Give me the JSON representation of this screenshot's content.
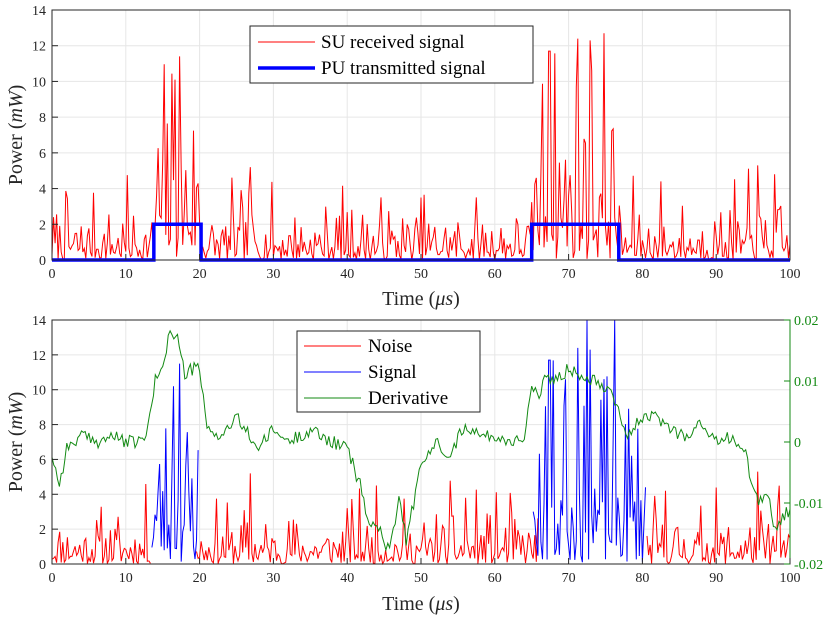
{
  "chart_data": [
    {
      "type": "line",
      "xlabel": "Time",
      "xunit": "μs",
      "ylabel": "Power",
      "yunit": "mW",
      "xlim": [
        0,
        100
      ],
      "ylim": [
        0,
        14
      ],
      "xticks": [
        0,
        10,
        20,
        30,
        40,
        50,
        60,
        70,
        80,
        90,
        100
      ],
      "yticks": [
        0,
        2,
        4,
        6,
        8,
        10,
        12,
        14
      ],
      "grid": true,
      "legend_position": "top-center",
      "series": [
        {
          "name": "SU received signal",
          "color": "#ff0000",
          "kind": "noisy",
          "seed": 7,
          "points": 480,
          "base_levels": [
            [
              0,
              13.8,
              1.0
            ],
            [
              13.8,
              20.2,
              3.6
            ],
            [
              20.2,
              65.0,
              1.0
            ],
            [
              65.0,
              76.8,
              3.7
            ],
            [
              76.8,
              100,
              1.0
            ]
          ],
          "peaks": [
            [
              17.3,
              11.4
            ],
            [
              16.6,
              10.1
            ],
            [
              71.2,
              12.4
            ],
            [
              67.4,
              11.7
            ],
            [
              73.0,
              12.3
            ],
            [
              95.6,
              5.3
            ],
            [
              26.8,
              5.2
            ],
            [
              82.5,
              4.4
            ],
            [
              98.0,
              4.8
            ]
          ]
        },
        {
          "name": "PU transmitted signal",
          "color": "#0000ff",
          "kind": "step",
          "x": [
            0,
            13.8,
            13.8,
            20.2,
            20.2,
            65.0,
            65.0,
            76.8,
            76.8,
            100
          ],
          "y": [
            0,
            0,
            2,
            2,
            0,
            0,
            2,
            2,
            0,
            0
          ]
        }
      ]
    },
    {
      "type": "line",
      "xlabel": "Time",
      "xunit": "μs",
      "ylabel": "Power",
      "yunit": "mW",
      "xlim": [
        0,
        100
      ],
      "ylim": [
        0,
        14
      ],
      "xticks": [
        0,
        10,
        20,
        30,
        40,
        50,
        60,
        70,
        80,
        90,
        100
      ],
      "yticks": [
        0,
        2,
        4,
        6,
        8,
        10,
        12,
        14
      ],
      "y2lim": [
        -0.02,
        0.02
      ],
      "y2ticks": [
        -0.02,
        -0.01,
        0,
        0.01,
        0.02
      ],
      "y2ticklabels": [
        "-0.02",
        "-0.01",
        "0",
        "0.01",
        "0.02"
      ],
      "y2color": "#138a13",
      "grid": true,
      "legend_position": "top-center",
      "series": [
        {
          "name": "Noise",
          "color": "#ff0000",
          "kind": "noisy",
          "seed": 11,
          "points": 480,
          "segments": [
            [
              0,
              13.5
            ],
            [
              19.5,
              66.0
            ],
            [
              80.5,
              100
            ]
          ],
          "base_level": 1.0,
          "peaks": [
            [
              26.8,
              5.2
            ],
            [
              56.0,
              3.8
            ],
            [
              95.6,
              5.3
            ],
            [
              98.5,
              4.5
            ],
            [
              83.2,
              4.2
            ]
          ]
        },
        {
          "name": "Signal",
          "color": "#0000ff",
          "kind": "noisy",
          "seed": 23,
          "points": 480,
          "segments": [
            [
              13.5,
              19.8
            ],
            [
              65.2,
              80.5
            ]
          ],
          "base_level": 3.4,
          "peaks": [
            [
              17.3,
              11.5
            ],
            [
              16.4,
              10.2
            ],
            [
              71.2,
              12.4
            ],
            [
              67.4,
              11.7
            ],
            [
              73.0,
              12.3
            ],
            [
              69.6,
              10.6
            ]
          ]
        },
        {
          "name": "Derivative",
          "color": "#138a13",
          "kind": "smooth",
          "axis": "right",
          "x": [
            0,
            1,
            2,
            4,
            6,
            8,
            10,
            12,
            13,
            14,
            15,
            16,
            17,
            18,
            19,
            20,
            21,
            23,
            25,
            28,
            30,
            32,
            35,
            38,
            40,
            42,
            43,
            44,
            45,
            46,
            47,
            48,
            50,
            52,
            54,
            56,
            58,
            60,
            62,
            64,
            65,
            66,
            67,
            68,
            70,
            72,
            74,
            76,
            78,
            80,
            82,
            84,
            86,
            88,
            90,
            92,
            94,
            95,
            96,
            97,
            98,
            99,
            100
          ],
          "y": [
            -0.002,
            -0.007,
            -0.001,
            0.001,
            0.0,
            0.001,
            0.0,
            0.0,
            0.002,
            0.01,
            0.013,
            0.018,
            0.017,
            0.011,
            0.012,
            0.012,
            0.002,
            0.001,
            0.004,
            -0.001,
            0.002,
            0.0,
            0.002,
            0.0,
            -0.001,
            -0.008,
            -0.014,
            -0.013,
            -0.017,
            -0.016,
            -0.009,
            -0.016,
            -0.004,
            0.0,
            -0.002,
            0.003,
            0.001,
            0.001,
            0.0,
            0.001,
            0.009,
            0.007,
            0.011,
            0.01,
            0.012,
            0.011,
            0.01,
            0.008,
            0.001,
            0.004,
            0.004,
            0.002,
            0.001,
            0.003,
            0.0,
            0.001,
            -0.002,
            -0.008,
            -0.01,
            -0.008,
            -0.015,
            -0.012,
            -0.011
          ]
        }
      ]
    }
  ]
}
